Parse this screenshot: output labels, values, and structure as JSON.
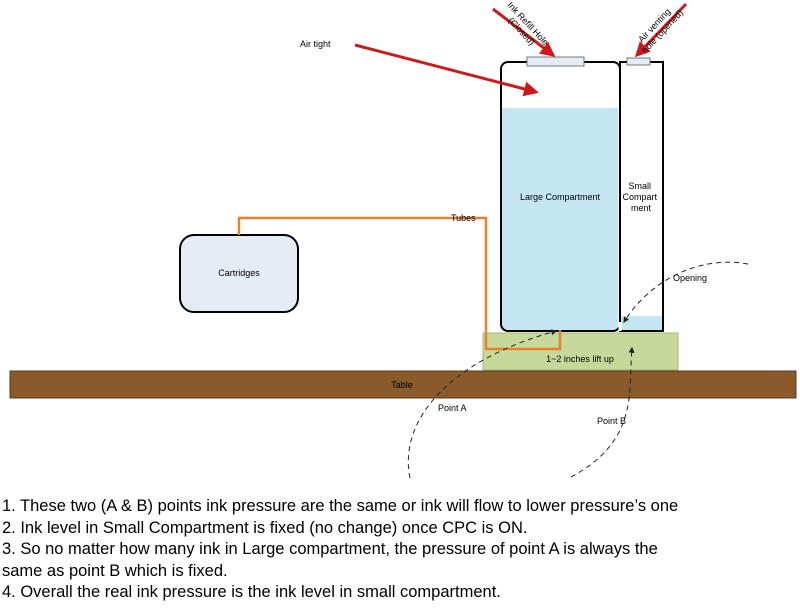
{
  "labels": {
    "air_tight": "Air tight",
    "ink_refill_hole_line1": "Ink Refill Hole",
    "ink_refill_hole_line2": "(Closed)",
    "air_venting_hole_line1": "Air venting",
    "air_venting_hole_line2": "hole (opened)",
    "large_compartment": "Large Compartment",
    "small_compartment_line1": "Small",
    "small_compartment_line2": "Compart",
    "small_compartment_line3": "ment",
    "tubes": "Tubes",
    "cartridges": "Cartridges",
    "opening": "Opening",
    "lift": "1~2 inches lift up",
    "table": "Table",
    "point_a": "Point A",
    "point_b": "Point B"
  },
  "notes": [
    "1. These two (A & B) points ink pressure are the same or ink will flow to lower pressure’s one",
    "2. Ink level in Small Compartment is fixed (no change) once CPC is ON.",
    "3. So no matter how many ink in Large compartment, the pressure of point A is always the",
    "same as point B which is fixed.",
    "4. Overall the real ink pressure is the ink level in small compartment."
  ],
  "colors": {
    "ink": "#c4e6f2",
    "arrow": "#cc1a1a",
    "tube": "#e8822a",
    "lift_block": "#c6d99a",
    "table": "#8b5a2b",
    "cartridge_fill": "#e6ecf6"
  }
}
